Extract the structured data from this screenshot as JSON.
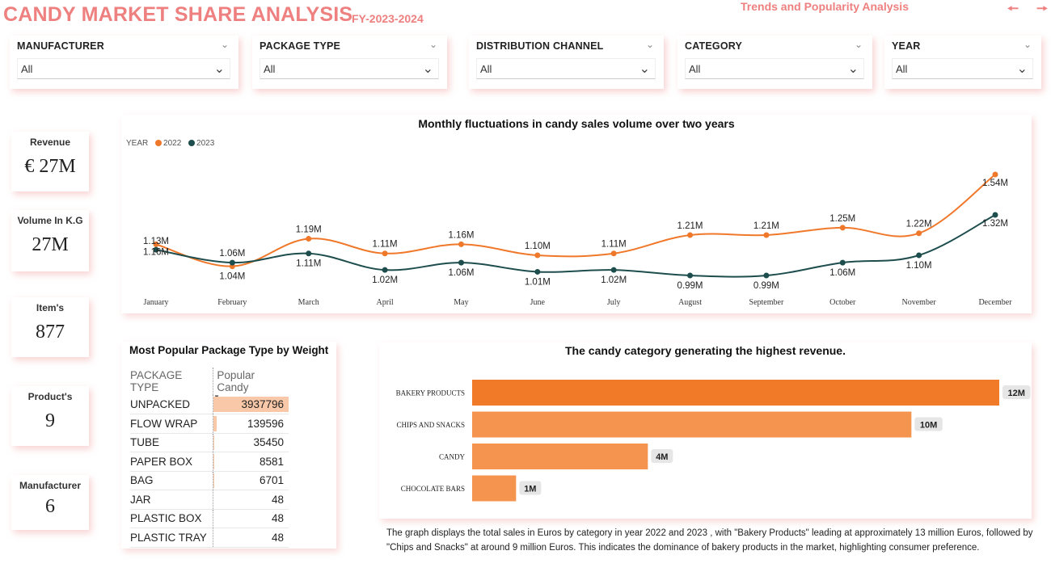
{
  "header": {
    "title": "CANDY MARKET SHARE ANALYSIS",
    "subtitle": "FY-2023-2024",
    "nav_link": "Trends and Popularity Analysis",
    "prev_icon": "arrow-left-icon",
    "next_icon": "arrow-right-icon"
  },
  "filters": [
    {
      "label": "MANUFACTURER",
      "value": "All"
    },
    {
      "label": "PACKAGE TYPE",
      "value": "All"
    },
    {
      "label": "DISTRIBUTION CHANNEL",
      "value": "All"
    },
    {
      "label": "CATEGORY",
      "value": "All"
    },
    {
      "label": "YEAR",
      "value": "All"
    }
  ],
  "kpis": [
    {
      "label": "Revenue",
      "value": "€ 27M"
    },
    {
      "label": "Volume In K.G",
      "value": "27M"
    },
    {
      "label": "Item's",
      "value": "877"
    },
    {
      "label": "Product's",
      "value": "9"
    },
    {
      "label": "Manufacturer",
      "value": "6"
    }
  ],
  "line_chart": {
    "title": "Monthly fluctuations in candy sales volume over two years",
    "legend_title": "YEAR",
    "colors": {
      "2022": "#f0782a",
      "2023": "#1e4d4d"
    }
  },
  "table": {
    "title": "Most Popular Package Type by Weight",
    "col1": "PACKAGE TYPE",
    "col2": "Popular Candy",
    "rows": [
      {
        "type": "UNPACKED",
        "value": "3937796",
        "num": 3937796
      },
      {
        "type": "FLOW WRAP",
        "value": "139596",
        "num": 139596
      },
      {
        "type": "TUBE",
        "value": "35450",
        "num": 35450
      },
      {
        "type": "PAPER BOX",
        "value": "8581",
        "num": 8581
      },
      {
        "type": "BAG",
        "value": "6701",
        "num": 6701
      },
      {
        "type": "JAR",
        "value": "48",
        "num": 48
      },
      {
        "type": "PLASTIC BOX",
        "value": "48",
        "num": 48
      },
      {
        "type": "PLASTIC TRAY",
        "value": "48",
        "num": 48
      }
    ]
  },
  "bar_chart_meta": {
    "title": "The candy category generating the highest revenue.",
    "colors": {
      "top": "#f07a28",
      "rest": "#f5944e"
    }
  },
  "description": "The graph displays the total sales in Euros by category in year 2022 and 2023 , with \"Bakery Products\" leading at approximately 13 million Euros, followed by \"Chips and Snacks\" at around 9 million Euros. This indicates the dominance of bakery products in the market, highlighting consumer preference.",
  "chart_data": [
    {
      "type": "line",
      "title": "Monthly fluctuations in candy sales volume over two years",
      "categories": [
        "January",
        "February",
        "March",
        "April",
        "May",
        "June",
        "July",
        "August",
        "September",
        "October",
        "November",
        "December"
      ],
      "series": [
        {
          "name": "2022",
          "values": [
            1.16,
            1.04,
            1.19,
            1.11,
            1.16,
            1.1,
            1.11,
            1.21,
            1.21,
            1.25,
            1.22,
            1.54
          ],
          "labels": [
            "1.16M",
            "1.04M",
            "1.19M",
            "1.11M",
            "1.16M",
            "1.10M",
            "1.11M",
            "1.21M",
            "1.21M",
            "1.25M",
            "1.22M",
            "1.54M"
          ]
        },
        {
          "name": "2023",
          "values": [
            1.13,
            1.06,
            1.11,
            1.02,
            1.06,
            1.01,
            1.02,
            0.99,
            0.99,
            1.06,
            1.1,
            1.32
          ],
          "labels": [
            "1.13M",
            "1.06M",
            "1.11M",
            "1.02M",
            "1.06M",
            "1.01M",
            "1.02M",
            "0.99M",
            "0.99M",
            "1.06M",
            "1.10M",
            "1.32M"
          ]
        }
      ],
      "legend": "top-left",
      "grid": false
    },
    {
      "type": "bar",
      "orientation": "horizontal",
      "title": "The candy category generating the highest revenue.",
      "categories": [
        "BAKERY PRODUCTS",
        "CHIPS AND SNACKS",
        "CANDY",
        "CHOCOLATE BARS"
      ],
      "values": [
        12,
        10,
        4,
        1
      ],
      "labels": [
        "12M",
        "10M",
        "4M",
        "1M"
      ],
      "grid": false
    }
  ]
}
